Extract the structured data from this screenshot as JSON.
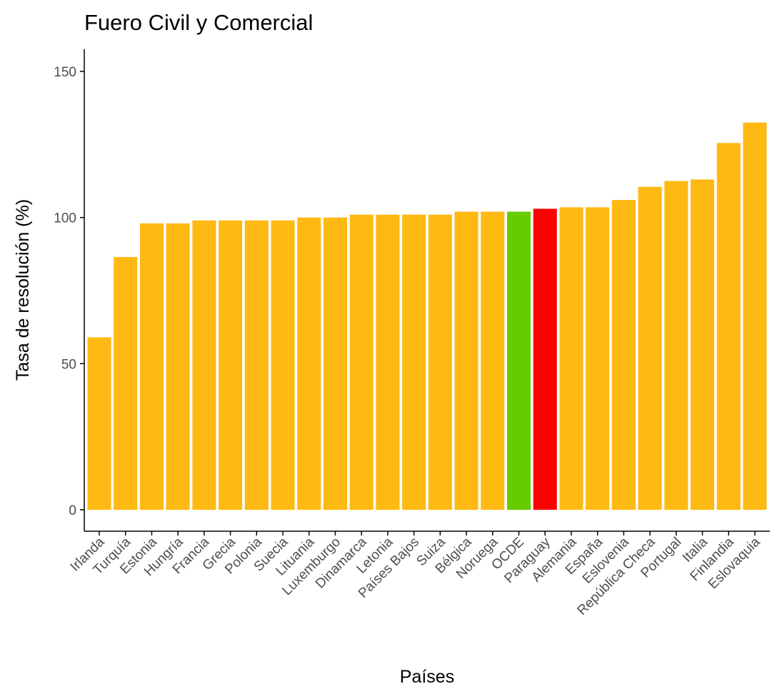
{
  "chart_data": {
    "type": "bar",
    "title": "Fuero Civil y Comercial",
    "xlabel": "Países",
    "ylabel": "Tasa de resolución (%)",
    "ylim": [
      -8,
      158
    ],
    "yticks": [
      0,
      50,
      100,
      150
    ],
    "grid": false,
    "legend": "none",
    "colors": {
      "default": "#FFB913",
      "oecd": "#66CC00",
      "paraguay": "#FF0000"
    },
    "categories": [
      "Irlanda",
      "Turquía",
      "Estonia",
      "Hungría",
      "Francia",
      "Grecia",
      "Polonia",
      "Suecia",
      "Lituania",
      "Luxemburgo",
      "Dinamarca",
      "Letonia",
      "Países Bajos",
      "Suiza",
      "Bélgica",
      "Noruega",
      "OCDE",
      "Paraguay",
      "Alemania",
      "España",
      "Eslovenia",
      "República Checa",
      "Portugal",
      "Italia",
      "Finlandia",
      "Eslovaquia"
    ],
    "values": [
      59,
      86.5,
      98,
      98,
      99,
      99,
      99,
      99,
      100,
      100,
      101,
      101,
      101,
      101,
      102,
      102,
      102,
      103,
      103.5,
      103.5,
      106,
      110.5,
      112.5,
      113,
      125.5,
      132.5
    ],
    "bar_colors": [
      "#FFB913",
      "#FFB913",
      "#FFB913",
      "#FFB913",
      "#FFB913",
      "#FFB913",
      "#FFB913",
      "#FFB913",
      "#FFB913",
      "#FFB913",
      "#FFB913",
      "#FFB913",
      "#FFB913",
      "#FFB913",
      "#FFB913",
      "#FFB913",
      "#66CC00",
      "#FF0000",
      "#FFB913",
      "#FFB913",
      "#FFB913",
      "#FFB913",
      "#FFB913",
      "#FFB913",
      "#FFB913",
      "#FFB913"
    ]
  }
}
